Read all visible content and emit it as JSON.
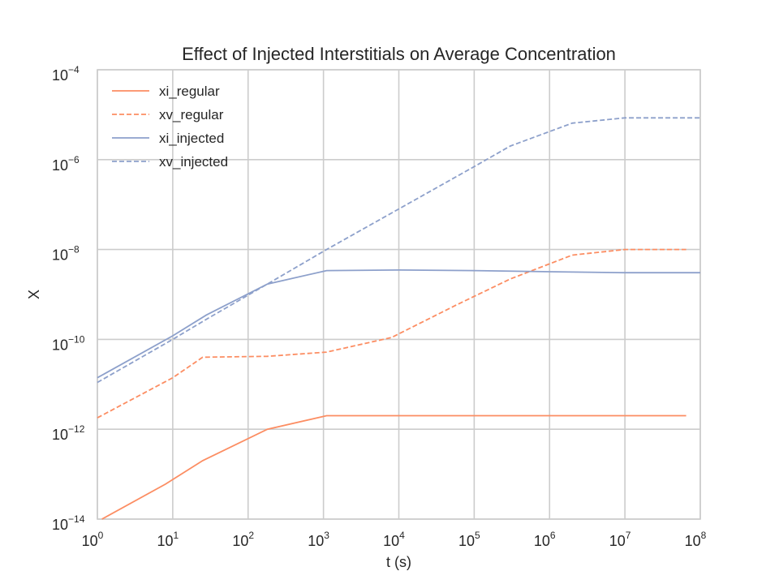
{
  "chart_data": {
    "type": "line",
    "title": "Effect of Injected Interstitials on Average Concentration",
    "xlabel": "t (s)",
    "ylabel": "X",
    "xscale": "log",
    "yscale": "log",
    "xlim": [
      1,
      100000000
    ],
    "ylim": [
      1e-14,
      0.0001
    ],
    "grid": true,
    "legend_position": "top-left",
    "x_ticks": [
      {
        "base": "10",
        "exp": "0",
        "value": 1
      },
      {
        "base": "10",
        "exp": "1",
        "value": 10
      },
      {
        "base": "10",
        "exp": "2",
        "value": 100
      },
      {
        "base": "10",
        "exp": "3",
        "value": 1000
      },
      {
        "base": "10",
        "exp": "4",
        "value": 10000
      },
      {
        "base": "10",
        "exp": "5",
        "value": 100000
      },
      {
        "base": "10",
        "exp": "6",
        "value": 1000000
      },
      {
        "base": "10",
        "exp": "7",
        "value": 10000000
      },
      {
        "base": "10",
        "exp": "8",
        "value": 100000000
      }
    ],
    "y_ticks": [
      {
        "base": "10",
        "exp": "−14",
        "value": 1e-14
      },
      {
        "base": "10",
        "exp": "−12",
        "value": 1e-12
      },
      {
        "base": "10",
        "exp": "−10",
        "value": 1e-10
      },
      {
        "base": "10",
        "exp": "−8",
        "value": 1e-08
      },
      {
        "base": "10",
        "exp": "−6",
        "value": 1e-06
      },
      {
        "base": "10",
        "exp": "−4",
        "value": 0.0001
      }
    ],
    "series": [
      {
        "name": "xi_regular",
        "color": "#fc8d62",
        "style": "solid",
        "points": [
          [
            1.15,
            1e-14
          ],
          [
            8,
            6e-14
          ],
          [
            25,
            2e-13
          ],
          [
            180,
            1e-12
          ],
          [
            1100,
            2e-12
          ],
          [
            10000,
            2e-12
          ],
          [
            100000,
            2e-12
          ],
          [
            1000000,
            2e-12
          ],
          [
            10000000,
            2e-12
          ],
          [
            65000000,
            2e-12
          ]
        ]
      },
      {
        "name": "xv_regular",
        "color": "#fc8d62",
        "style": "dashed",
        "points": [
          [
            1,
            1.8e-12
          ],
          [
            10,
            1.4e-11
          ],
          [
            25,
            4e-11
          ],
          [
            180,
            4.2e-11
          ],
          [
            1100,
            5.2e-11
          ],
          [
            8000,
            1.1e-10
          ],
          [
            60000,
            6e-10
          ],
          [
            300000,
            2.2e-09
          ],
          [
            2000000,
            7.5e-09
          ],
          [
            10000000,
            1e-08
          ],
          [
            65000000,
            1e-08
          ]
        ]
      },
      {
        "name": "xi_injected",
        "color": "#8da0cb",
        "style": "solid",
        "points": [
          [
            1,
            1.4e-11
          ],
          [
            10,
            1.2e-10
          ],
          [
            28,
            3.5e-10
          ],
          [
            180,
            1.7e-09
          ],
          [
            1100,
            3.4e-09
          ],
          [
            10000,
            3.5e-09
          ],
          [
            100000,
            3.4e-09
          ],
          [
            1000000,
            3.2e-09
          ],
          [
            10000000,
            3.05e-09
          ],
          [
            100000000,
            3.05e-09
          ]
        ]
      },
      {
        "name": "xv_injected",
        "color": "#8da0cb",
        "style": "dashed",
        "points": [
          [
            1,
            1.1e-11
          ],
          [
            10,
            1e-10
          ],
          [
            28,
            2.8e-10
          ],
          [
            180,
            1.7e-09
          ],
          [
            1100,
            1e-08
          ],
          [
            10000,
            8e-08
          ],
          [
            100000,
            7e-07
          ],
          [
            300000,
            2e-06
          ],
          [
            2000000,
            6.5e-06
          ],
          [
            10000000,
            8.5e-06
          ],
          [
            100000000,
            8.5e-06
          ]
        ]
      }
    ]
  }
}
